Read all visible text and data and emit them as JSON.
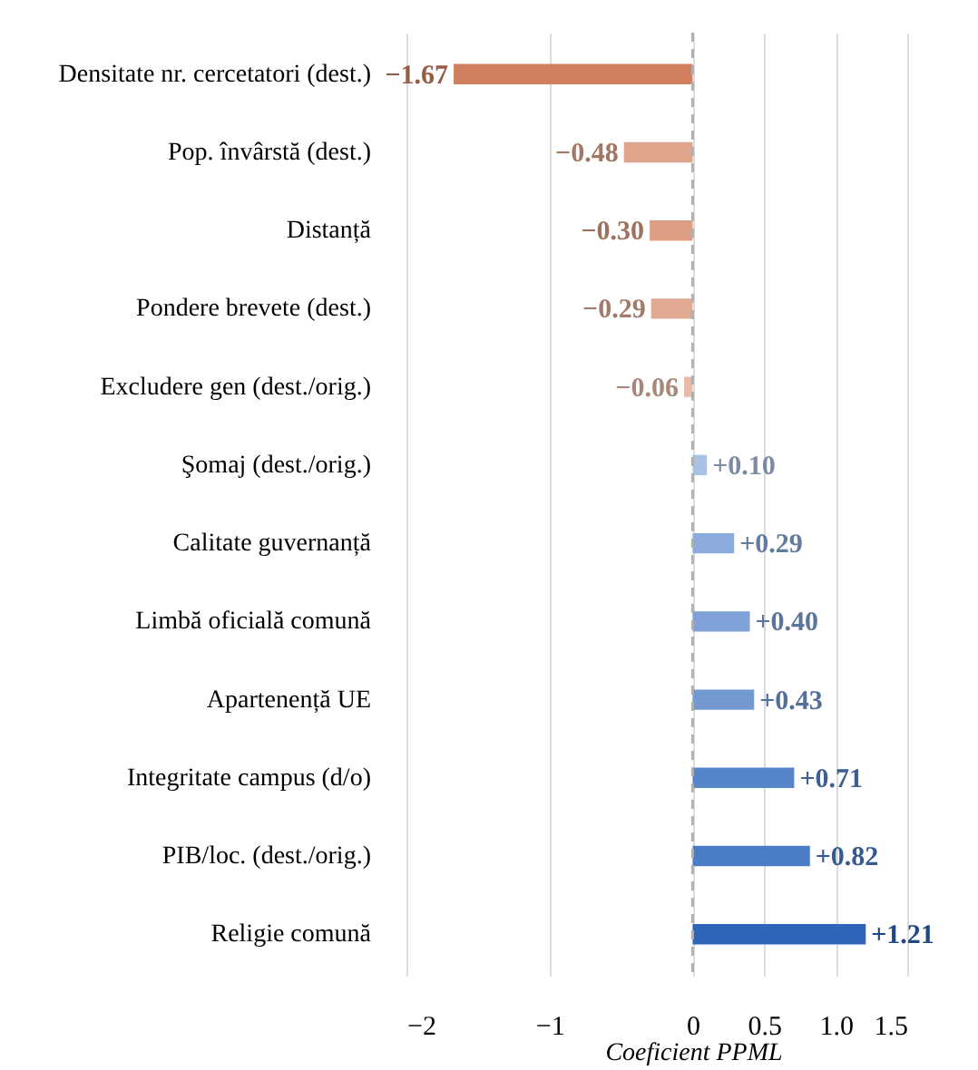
{
  "chart_data": {
    "type": "bar",
    "orientation": "horizontal",
    "xlabel": "Coeficient PPML",
    "categories": [
      "Densitate nr. cercetatori (dest.)",
      "Pop. învârstă (dest.)",
      "Distanță",
      "Pondere brevete (dest.)",
      "Excludere gen (dest./orig.)",
      "Şomaj (dest./orig.)",
      "Calitate guvernanță",
      "Limbă oficială comună",
      "Apartenență UE",
      "Integritate campus (d/o)",
      "PIB/loc. (dest./orig.)",
      "Religie comună"
    ],
    "values": [
      -1.67,
      -0.48,
      -0.3,
      -0.29,
      -0.06,
      0.1,
      0.29,
      0.4,
      0.43,
      0.71,
      0.82,
      1.21
    ],
    "colors": [
      "#d0805e",
      "#dea58b",
      "#dc9f84",
      "#e0aa92",
      "#e8bba6",
      "#a9c1e3",
      "#8aabdb",
      "#7ea1d7",
      "#7399d2",
      "#5686c9",
      "#4a7dc5",
      "#2f64b8"
    ],
    "value_labels": [
      "−1.67",
      "−0.48",
      "−0.30",
      "−0.29",
      "−0.06",
      "+0.10",
      "+0.29",
      "+0.40",
      "+0.43",
      "+0.71",
      "+0.82",
      "+1.21"
    ],
    "xlim": [
      -2,
      1.5
    ],
    "xticks": [
      {
        "value": -2,
        "label": "−2"
      },
      {
        "value": -1,
        "label": "−1"
      },
      0,
      0.5,
      {
        "value": 1,
        "label": "1.0"
      },
      1.5
    ],
    "ref_lines": [
      {
        "axis": "x",
        "value": 0,
        "color": "#b0b0b0",
        "line_style": "dashed"
      }
    ],
    "grid": "x"
  }
}
